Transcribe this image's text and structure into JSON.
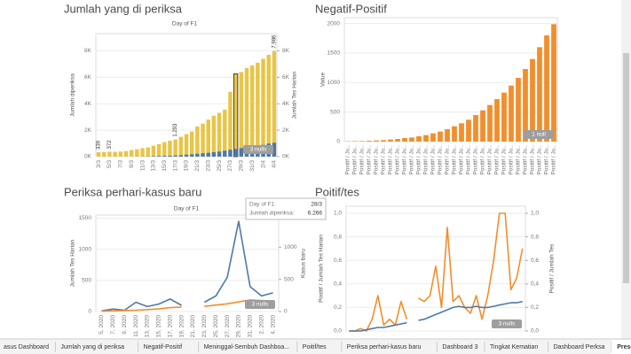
{
  "chart_data": [
    {
      "type": "bar",
      "title": "Jumlah yang di periksa",
      "subtitle": "Day of F1",
      "ylabel": "Jumlah diperiksa",
      "y2label": "Jumlah Tes Harian",
      "categories": [
        "3/3",
        null,
        "5/3",
        null,
        "7/3",
        null,
        "9/3",
        null,
        "11/3",
        null,
        "13/3",
        null,
        "15/3",
        null,
        "17/3",
        null,
        "19/3",
        null,
        "21/3",
        null,
        "23/3",
        null,
        "25/3",
        null,
        "27/3",
        null,
        "29/3",
        null,
        "31/3",
        null,
        "2/4",
        null,
        "4/4"
      ],
      "series": [
        {
          "color": "#e8c547",
          "values": [
            339,
            350,
            372,
            360,
            380,
            420,
            500,
            560,
            640,
            700,
            820,
            950,
            1100,
            1200,
            1293,
            1500,
            1700,
            1900,
            2287,
            2500,
            2800,
            3100,
            3317,
            3554,
            4900,
            6266,
            6400,
            6700,
            6900,
            7100,
            7400,
            7700,
            7986
          ],
          "value_labels": [
            "339",
            null,
            "372",
            null,
            null,
            null,
            null,
            null,
            null,
            null,
            null,
            null,
            null,
            null,
            "1.293",
            null,
            null,
            null,
            null,
            null,
            null,
            null,
            null,
            null,
            null,
            null,
            null,
            null,
            null,
            null,
            null,
            null,
            "7.986"
          ]
        },
        {
          "color": "#4e79a7",
          "values": [
            1,
            1,
            1,
            2,
            2,
            3,
            3,
            10,
            14,
            17,
            35,
            48,
            60,
            70,
            86,
            110,
            150,
            180,
            220,
            260,
            290,
            340,
            390,
            450,
            520,
            580,
            640,
            700,
            760,
            830,
            890,
            990,
            1050
          ]
        }
      ],
      "highlight_index": 25,
      "ylim": [
        0,
        9300
      ],
      "yticks": [
        {
          "value": 0,
          "label": "0K"
        },
        {
          "value": 2000,
          "label": "2K"
        },
        {
          "value": 4000,
          "label": "4K"
        },
        {
          "value": 6000,
          "label": "6K"
        },
        {
          "value": 8000,
          "label": "8K"
        }
      ],
      "y2lim": [
        0,
        9300
      ],
      "y2ticks": [
        {
          "value": 0,
          "label": "0K"
        },
        {
          "value": 2000,
          "label": "2K"
        },
        {
          "value": 4000,
          "label": "4K"
        },
        {
          "value": 6000,
          "label": "6K"
        },
        {
          "value": 8000,
          "label": "8K"
        }
      ],
      "grid": true,
      "annotation": "3 nulls"
    },
    {
      "type": "bar",
      "title": "Negatif-Positif",
      "ylabel": "Value",
      "categories": [
        "Positif / Ju..",
        "Positif / Ju..",
        "Positif / Ju..",
        "Positif / Ju..",
        "Positif / Ju..",
        "Positif / Ju..",
        "Positif / Ju..",
        "Positif / Ju..",
        "Positif / Ju..",
        "Positif / Ju..",
        "Positif / Ju..",
        "Positif / Ju..",
        "Positif / Ju..",
        "Positif / Ju..",
        "Positif / Ju..",
        "Positif / Ju..",
        "Positif / Ju..",
        "Positif / Ju..",
        "Positif / Ju..",
        "Positif / Ju..",
        "Positif / Ju..",
        "Positif / Ju..",
        "Positif / Ju..",
        "Positif / Ju..",
        "Positif / Ju..",
        "Positif / Ju..",
        "Positif / Ju..",
        "Positif / Ju..",
        "Positif / Ju..",
        "Positif / Ju.."
      ],
      "series": [
        {
          "color": "#f28e2b",
          "values": [
            5,
            8,
            10,
            15,
            20,
            25,
            35,
            45,
            60,
            70,
            90,
            110,
            140,
            170,
            210,
            260,
            310,
            370,
            450,
            530,
            620,
            720,
            830,
            950,
            1080,
            1230,
            1400,
            1600,
            1800,
            1990
          ]
        }
      ],
      "ylim": [
        0,
        2100
      ],
      "yticks": [
        0,
        500,
        1000,
        1500,
        2000
      ],
      "grid": true,
      "annotation": "1 null"
    },
    {
      "type": "line",
      "title": "Periksa perhari-kasus baru",
      "subtitle": "Day of F1",
      "ylabel": "Jumlah Tes Harian",
      "y2label": "Kasus baru",
      "categories": [
        "5, 2020",
        "7, 2020",
        "9, 2020",
        "11, 2020",
        "13, 2020",
        "15, 2020",
        "17, 2020",
        "19, 2020",
        "21, 2020",
        "23, 2020",
        "25, 2020",
        "27, 2020",
        "29, 2020",
        "31, 2020",
        "2, 2020",
        "4, 2020"
      ],
      "series": [
        {
          "color": "#4e79a7",
          "values": [
            10,
            40,
            20,
            150,
            80,
            120,
            200,
            100,
            null,
            150,
            250,
            550,
            1450,
            400,
            250,
            300
          ]
        },
        {
          "color": "#f28e2b",
          "axis": "y2",
          "values": [
            5,
            10,
            15,
            20,
            30,
            40,
            60,
            70,
            null,
            80,
            100,
            120,
            150,
            180,
            170,
            160
          ]
        }
      ],
      "ylim": [
        0,
        1550
      ],
      "yticks": [
        0,
        500,
        1000,
        1500
      ],
      "y2lim": [
        0,
        1500
      ],
      "y2ticks": [
        0,
        500,
        1000
      ],
      "grid": true,
      "annotation": "3 nulls"
    },
    {
      "type": "line",
      "title": "Poitif/tes",
      "ylabel": "Positif / Jumlah Tes Harian",
      "y2label": "Positif / Jumlah Tes",
      "series": [
        {
          "color": "#f28e2b",
          "values": [
            0,
            0,
            0.02,
            0,
            0.1,
            0.3,
            0.05,
            0.1,
            0.05,
            0.25,
            0.1,
            null,
            0.28,
            0.25,
            0.3,
            0.55,
            0.2,
            0.88,
            0.25,
            0.3,
            0.2,
            0.15,
            0.3,
            0.1,
            0.3,
            0.6,
            1.0,
            1.0,
            0.35,
            0.45,
            0.7
          ]
        },
        {
          "color": "#4e79a7",
          "axis": "y2",
          "values": [
            0,
            0,
            0,
            0.01,
            0.02,
            0.03,
            0.03,
            0.04,
            0.05,
            0.06,
            0.07,
            null,
            0.09,
            0.1,
            0.12,
            0.14,
            0.16,
            0.18,
            0.2,
            0.21,
            0.2,
            0.2,
            0.21,
            0.2,
            0.2,
            0.21,
            0.22,
            0.23,
            0.24,
            0.24,
            0.25
          ]
        }
      ],
      "ylim": [
        0,
        1.06
      ],
      "yticks": [
        {
          "value": 0,
          "label": "0,0"
        },
        {
          "value": 0.2,
          "label": "0,2"
        },
        {
          "value": 0.4,
          "label": "0,4"
        },
        {
          "value": 0.6,
          "label": "0,6"
        },
        {
          "value": 0.8,
          "label": "0,8"
        },
        {
          "value": 1,
          "label": "1,0"
        }
      ],
      "y2lim": [
        0,
        1.06
      ],
      "y2ticks": [
        {
          "value": 0,
          "label": "0,0"
        },
        {
          "value": 0.2,
          "label": "0,2"
        },
        {
          "value": 0.4,
          "label": "0,4"
        },
        {
          "value": 0.6,
          "label": "0,6"
        },
        {
          "value": 0.8,
          "label": "0,8"
        },
        {
          "value": 1,
          "label": "1,0"
        }
      ],
      "grid": true,
      "annotation": "3 nulls"
    }
  ],
  "tooltip": {
    "rows": [
      [
        "Day of F1:",
        "28/3"
      ],
      [
        "Jumlah diperiksa:",
        "6.266"
      ]
    ]
  },
  "tabs": [
    "asus Dashboard",
    "Jumlah yang di periksa",
    "Negatif-Positif",
    "Meninggal-Sembuh Dashboa...",
    "Poitif/tes",
    "Periksa perhari-kasus baru",
    "Dashboard 3",
    "Tingkat Kematian",
    "Dashboard Perksa",
    "Presentasi"
  ],
  "active_tab": 9
}
